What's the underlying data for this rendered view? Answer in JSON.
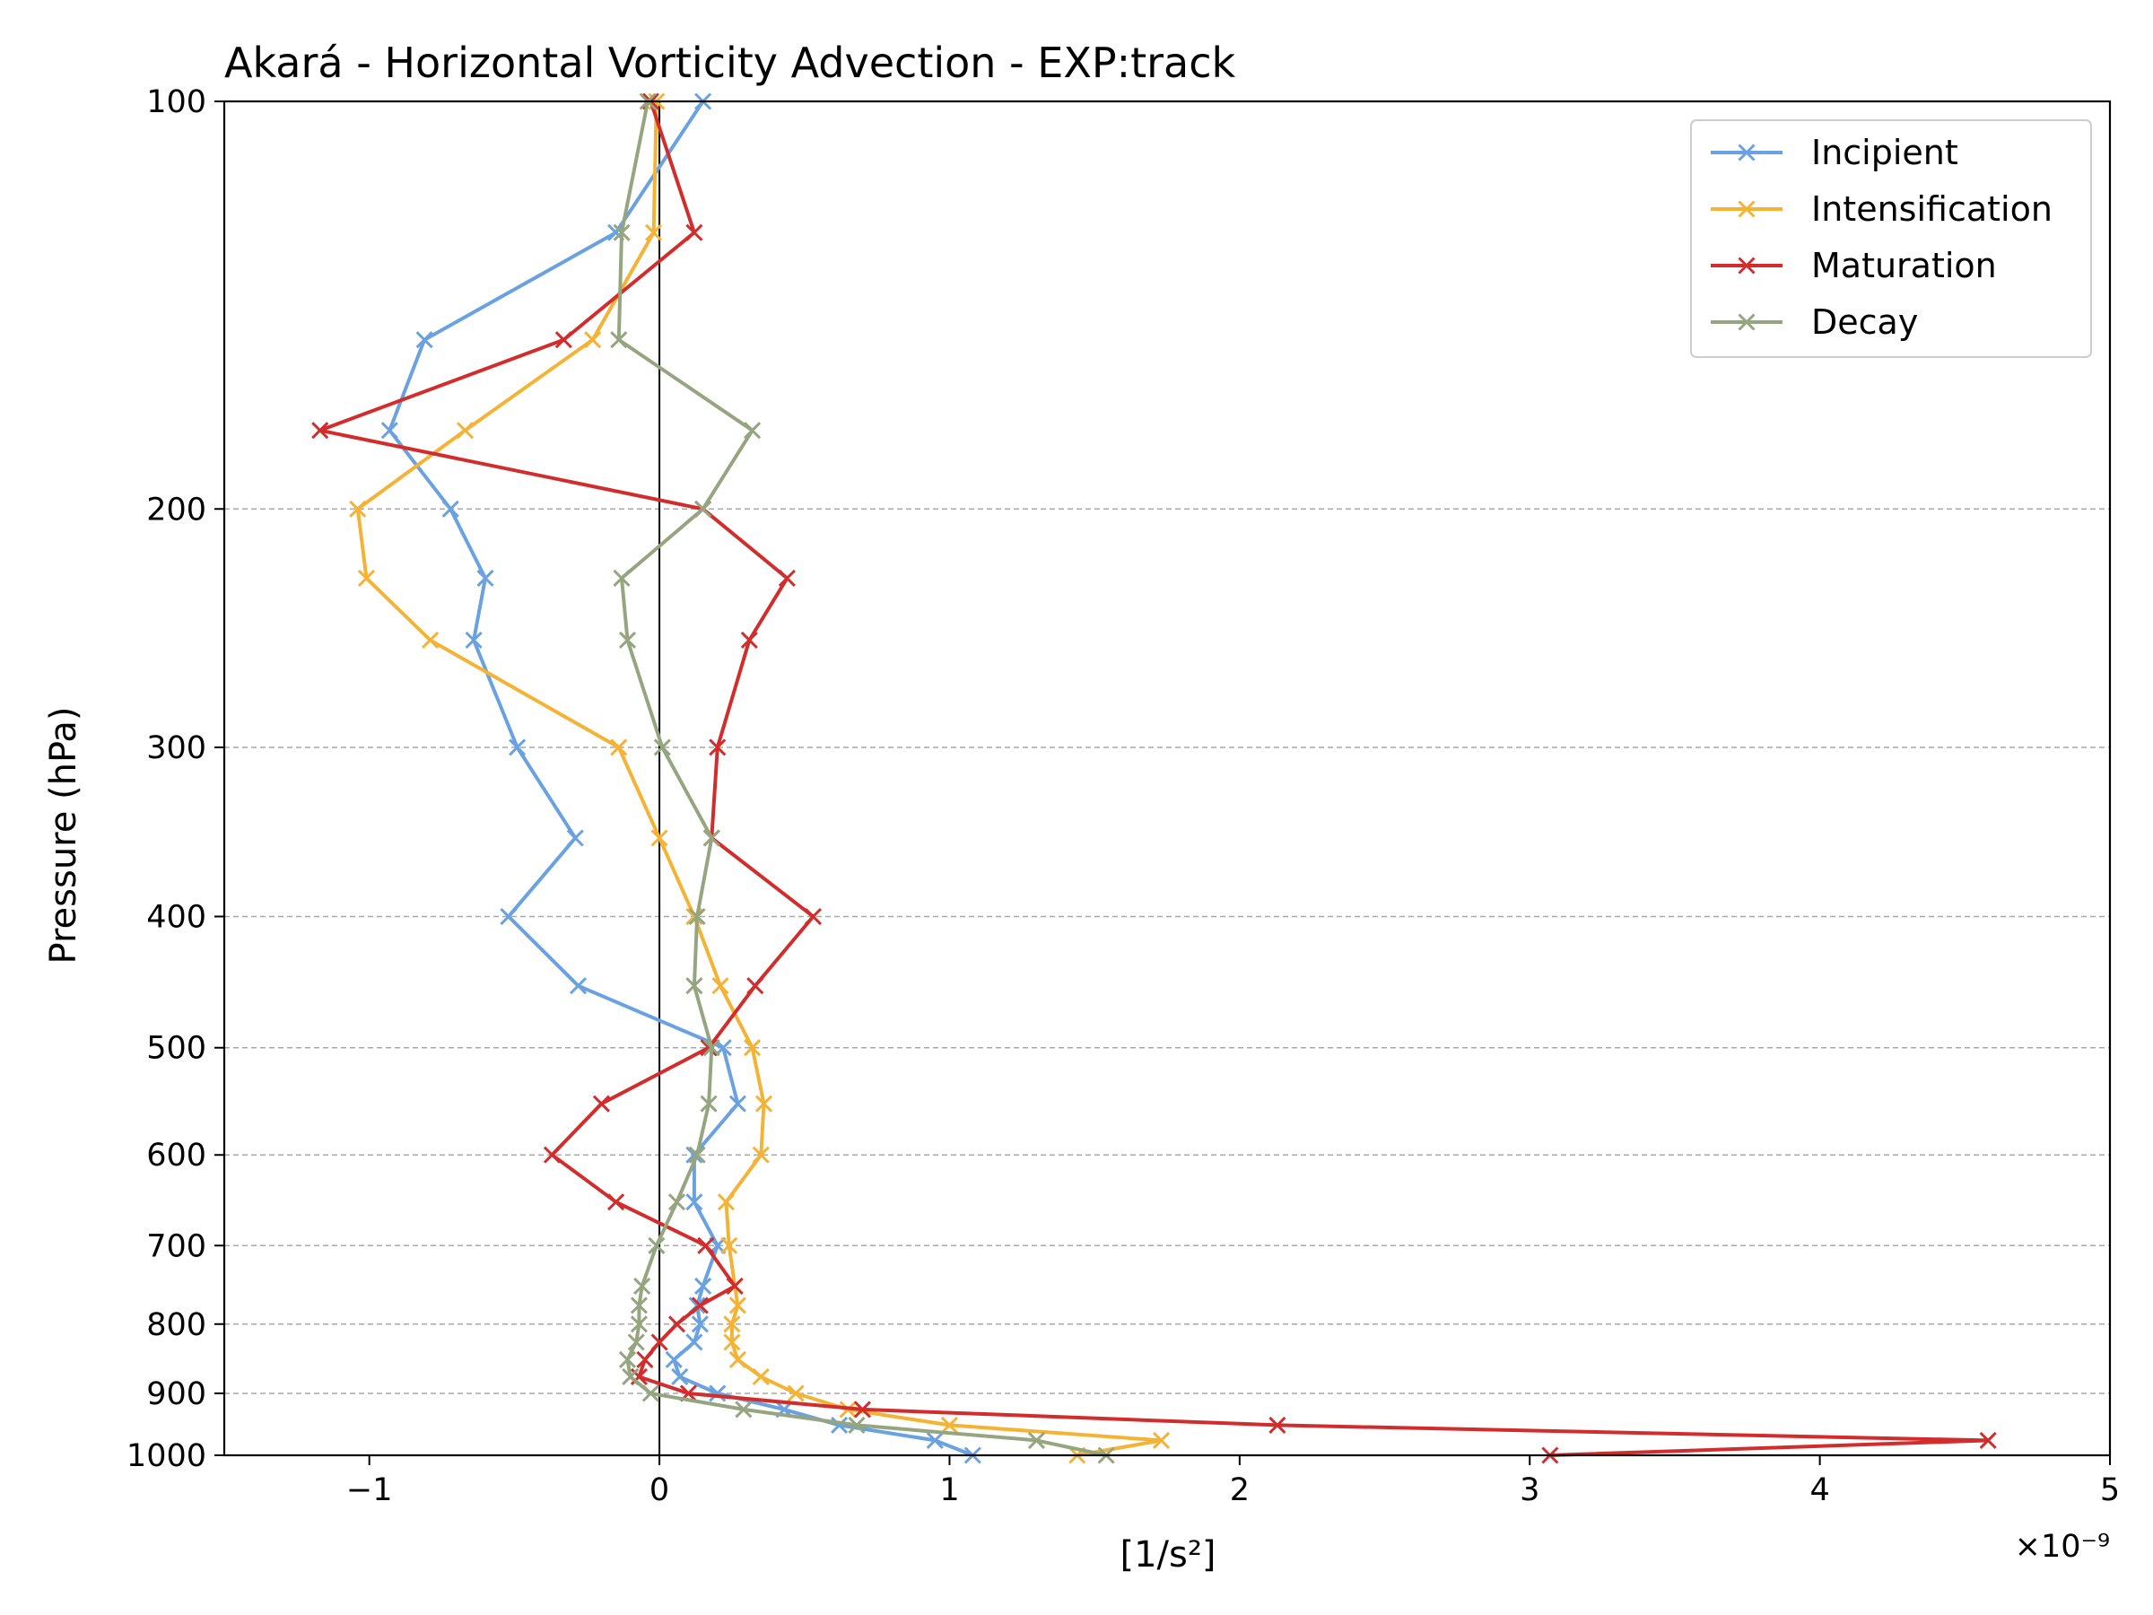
{
  "chart_data": {
    "type": "line",
    "title": "Akará - Horizontal Vorticity Advection - EXP:track",
    "xlabel": "[1/s²]",
    "ylabel": "Pressure (hPa)",
    "x_multiplier_text": "×10⁻⁹",
    "x_unit_scale": 1e-09,
    "xlim": [
      -1.5,
      5
    ],
    "ylim": [
      1000,
      100
    ],
    "y_scale": "log",
    "x_ticks": [
      -1,
      0,
      1,
      2,
      3,
      4,
      5
    ],
    "x_tick_labels": [
      "−1",
      "0",
      "1",
      "2",
      "3",
      "4",
      "5"
    ],
    "y_ticks": [
      100,
      200,
      300,
      400,
      500,
      600,
      700,
      800,
      900,
      1000
    ],
    "y_tick_labels": [
      "100",
      "200",
      "300",
      "400",
      "500",
      "600",
      "700",
      "800",
      "900",
      "1000"
    ],
    "grid": "horizontal-dashed",
    "legend": "top-right",
    "zero_line": 0,
    "pressure_levels": [
      1000,
      975,
      950,
      925,
      900,
      875,
      850,
      825,
      800,
      775,
      750,
      700,
      650,
      600,
      550,
      500,
      450,
      400,
      350,
      300,
      250,
      225,
      200,
      175,
      150,
      125,
      100
    ],
    "series": [
      {
        "name": "Incipient",
        "color": "#6aa1e0",
        "values": [
          1.08,
          0.95,
          0.62,
          0.43,
          0.2,
          0.07,
          0.05,
          0.12,
          0.14,
          0.13,
          0.15,
          0.2,
          0.12,
          0.12,
          0.27,
          0.22,
          -0.28,
          -0.52,
          -0.29,
          -0.49,
          -0.64,
          -0.6,
          -0.72,
          -0.93,
          -0.81,
          -0.15,
          0.15
        ]
      },
      {
        "name": "Intensification",
        "color": "#f5b335",
        "values": [
          1.44,
          1.73,
          1.0,
          0.65,
          0.47,
          0.35,
          0.27,
          0.25,
          0.25,
          0.27,
          0.26,
          0.24,
          0.23,
          0.35,
          0.36,
          0.32,
          0.21,
          0.12,
          0.0,
          -0.14,
          -0.79,
          -1.01,
          -1.04,
          -0.67,
          -0.23,
          -0.02,
          -0.01
        ]
      },
      {
        "name": "Maturation",
        "color": "#d22d2d",
        "values": [
          3.07,
          4.58,
          2.13,
          0.7,
          0.1,
          -0.07,
          -0.05,
          0.0,
          0.06,
          0.14,
          0.26,
          0.16,
          -0.15,
          -0.37,
          -0.2,
          0.17,
          0.33,
          0.53,
          0.18,
          0.2,
          0.31,
          0.44,
          0.15,
          -1.17,
          -0.33,
          0.12,
          -0.03
        ]
      },
      {
        "name": "Decay",
        "color": "#95a57f",
        "values": [
          1.54,
          1.3,
          0.68,
          0.29,
          -0.03,
          -0.1,
          -0.11,
          -0.08,
          -0.07,
          -0.07,
          -0.06,
          -0.01,
          0.06,
          0.13,
          0.17,
          0.18,
          0.12,
          0.13,
          0.18,
          0.01,
          -0.11,
          -0.13,
          0.15,
          0.32,
          -0.14,
          -0.13,
          -0.04
        ]
      }
    ]
  }
}
